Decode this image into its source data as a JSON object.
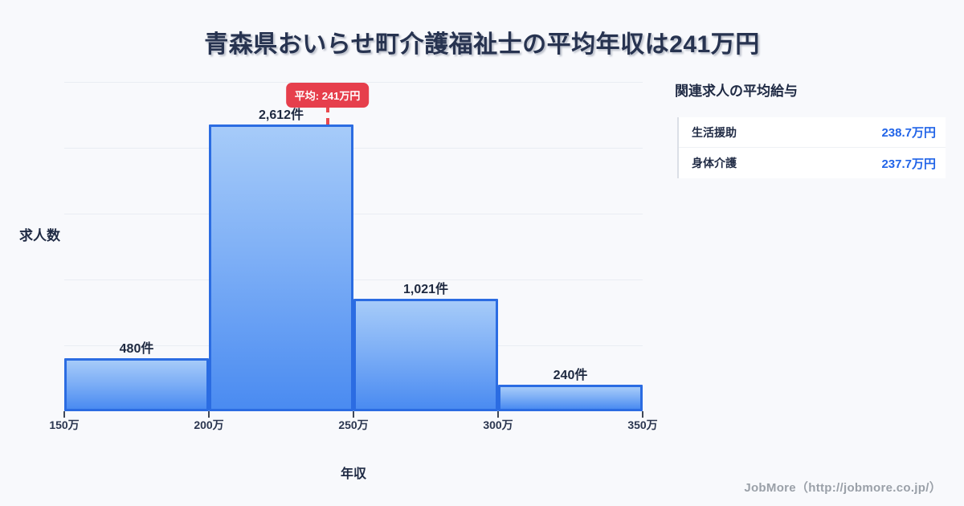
{
  "page": {
    "title": "青森県おいらせ町介護福祉士の平均年収は241万円",
    "background_color": "#f8f9fc",
    "title_color": "#273350"
  },
  "chart_data": {
    "type": "bar",
    "title": "青森県おいらせ町介護福祉士の平均年収は241万円",
    "categories": [
      "150万-200万",
      "200万-250万",
      "250万-300万",
      "300万-350万"
    ],
    "values": [
      480,
      2612,
      1021,
      240
    ],
    "bar_labels": [
      "480件",
      "2,612件",
      "1,021件",
      "240件"
    ],
    "x_ticks": [
      "150万",
      "200万",
      "250万",
      "300万",
      "350万"
    ],
    "x_min": 150,
    "x_max": 350,
    "xlabel": "年収",
    "ylabel": "求人数",
    "ylim": [
      0,
      3000
    ],
    "grid": true,
    "gridline_values": [
      600,
      1200,
      1800,
      2400,
      3000
    ],
    "average": {
      "value": 241,
      "label": "平均: 241万円"
    },
    "colors": {
      "bar_fill_top": "#a6cbf9",
      "bar_fill_bottom": "#4a8bf1",
      "bar_border": "#2b6ce2",
      "average_line": "#e8484e",
      "average_badge_bg": "#e63f4c",
      "gridline": "#e9edf3"
    }
  },
  "side_panel": {
    "heading": "関連求人の平均給与",
    "rows": [
      {
        "label": "生活援助",
        "value": "238.7万円"
      },
      {
        "label": "身体介護",
        "value": "237.7万円"
      }
    ]
  },
  "footer": {
    "credit": "JobMore（http://jobmore.co.jp/）"
  }
}
